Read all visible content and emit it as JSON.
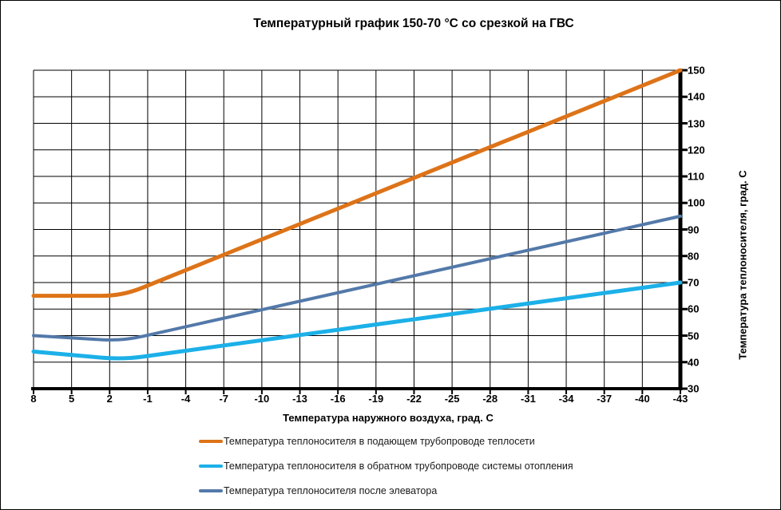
{
  "chart": {
    "title": "Температурный график 150-70 °С со срезкой на ГВС"
  },
  "chart_data": {
    "type": "line",
    "title": "Температурный график 150-70 °С со срезкой на ГВС",
    "xlabel": "Температура наружного воздуха, град. С",
    "ylabel": "Температура теплоносителя, град. С",
    "x_ticks": [
      8,
      5,
      2,
      -1,
      -4,
      -7,
      -10,
      -13,
      -16,
      -19,
      -22,
      -25,
      -28,
      -31,
      -34,
      -37,
      -40,
      -43
    ],
    "y_ticks": [
      150,
      140,
      130,
      120,
      110,
      100,
      90,
      80,
      70,
      60,
      50,
      40,
      30
    ],
    "xlim": [
      8,
      -43
    ],
    "ylim": [
      30,
      150
    ],
    "grid": true,
    "legend_position": "bottom-left",
    "series": [
      {
        "name": "Температура теплоносителя в подающем трубопроводе теплосети",
        "color": "#DD7318",
        "stroke_width": 5,
        "points": [
          [
            8,
            65
          ],
          [
            1,
            65
          ],
          [
            -43,
            150
          ]
        ]
      },
      {
        "name": "Температура теплоносителя в обратном трубопроводе  системы отопления",
        "color": "#1CB0E8",
        "stroke_width": 5,
        "points": [
          [
            8,
            44
          ],
          [
            1,
            41
          ],
          [
            -43,
            70
          ]
        ]
      },
      {
        "name": "Температура теплоносителя после элеватора",
        "color": "#5379A9",
        "stroke_width": 4,
        "points": [
          [
            8,
            50
          ],
          [
            1,
            48
          ],
          [
            -43,
            95
          ]
        ]
      }
    ]
  },
  "colors": {
    "grid": "#000000",
    "axis": "#000000",
    "background": "#ffffff"
  }
}
